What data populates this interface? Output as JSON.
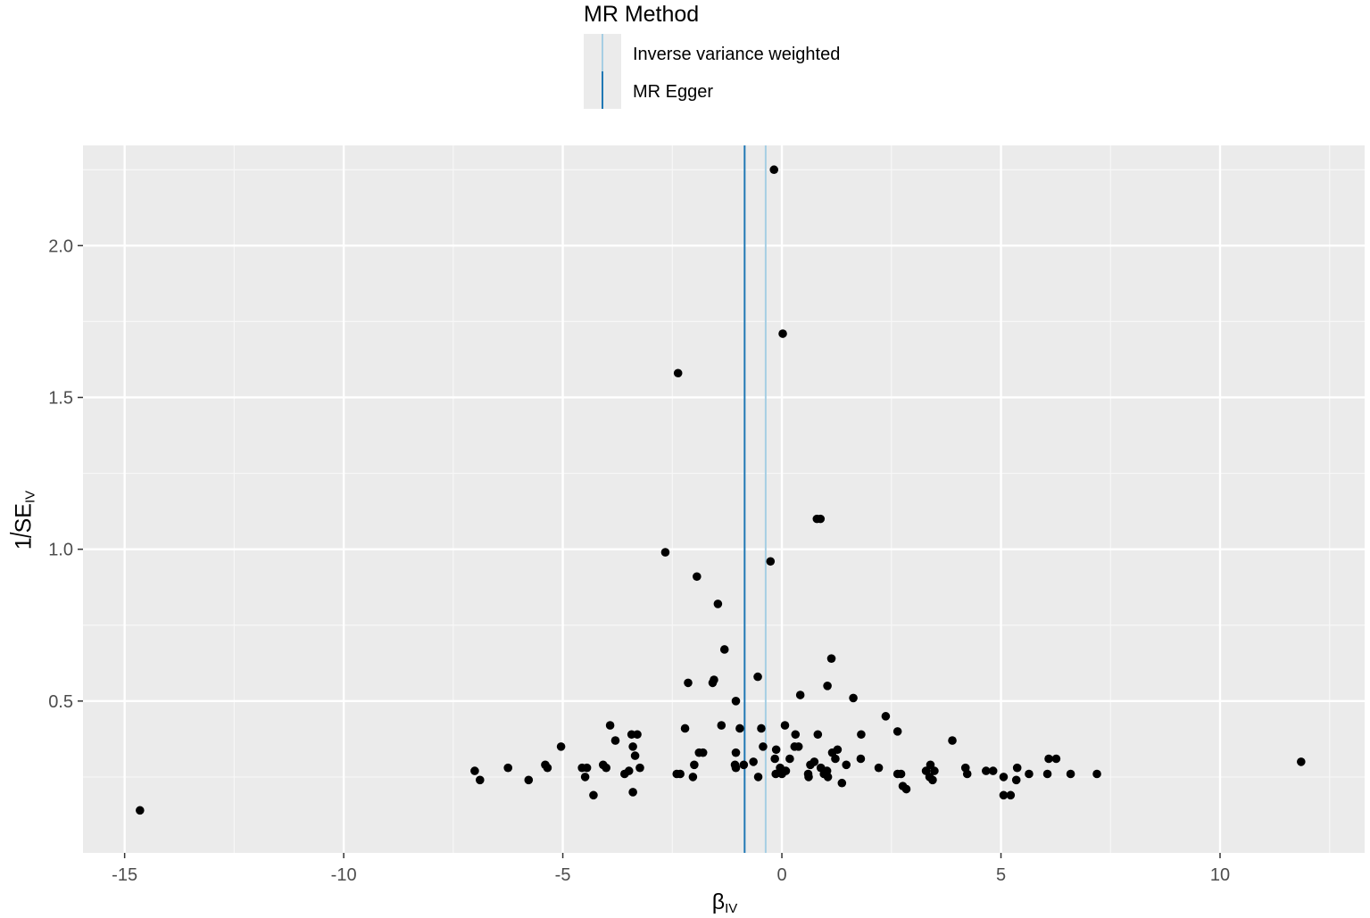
{
  "chart_data": {
    "type": "scatter",
    "xlabel": "β",
    "xlabel_sub": "IV",
    "ylabel_num": "1",
    "ylabel_den": "SE",
    "ylabel_sub": "IV",
    "xlim": [
      -15.95,
      13.3
    ],
    "ylim": [
      0.0,
      2.33
    ],
    "x_ticks": [
      -15,
      -10,
      -5,
      0,
      5,
      10
    ],
    "x_tick_labels": [
      "-15",
      "-10",
      "-5",
      "0",
      "5",
      "10"
    ],
    "y_ticks": [
      0.5,
      1.0,
      1.5,
      2.0
    ],
    "y_tick_labels": [
      "0.5",
      "1.0",
      "1.5",
      "2.0"
    ],
    "grid": true,
    "legend": {
      "title": "MR Method",
      "position": "top",
      "entries": [
        {
          "label": "Inverse variance weighted",
          "color": "#a6cee3"
        },
        {
          "label": "MR Egger",
          "color": "#1f78b4"
        }
      ]
    },
    "reference_lines": [
      {
        "method": "Inverse variance weighted",
        "x": -0.37,
        "color": "#a6cee3"
      },
      {
        "method": "MR Egger",
        "x": -0.85,
        "color": "#1f78b4"
      }
    ],
    "points": [
      [
        -0.18,
        2.25
      ],
      [
        0.02,
        1.71
      ],
      [
        -2.37,
        1.58
      ],
      [
        0.8,
        1.1
      ],
      [
        0.88,
        1.1
      ],
      [
        -2.66,
        0.99
      ],
      [
        -0.26,
        0.96
      ],
      [
        -1.94,
        0.91
      ],
      [
        -1.46,
        0.82
      ],
      [
        -1.31,
        0.67
      ],
      [
        1.13,
        0.64
      ],
      [
        -0.55,
        0.58
      ],
      [
        -2.14,
        0.56
      ],
      [
        -1.55,
        0.57
      ],
      [
        -1.58,
        0.56
      ],
      [
        1.04,
        0.55
      ],
      [
        0.42,
        0.52
      ],
      [
        1.63,
        0.51
      ],
      [
        -1.05,
        0.5
      ],
      [
        2.37,
        0.45
      ],
      [
        -3.92,
        0.42
      ],
      [
        -2.21,
        0.41
      ],
      [
        -1.38,
        0.42
      ],
      [
        -0.96,
        0.41
      ],
      [
        -0.47,
        0.41
      ],
      [
        0.07,
        0.42
      ],
      [
        2.64,
        0.4
      ],
      [
        -3.3,
        0.39
      ],
      [
        -3.43,
        0.39
      ],
      [
        0.31,
        0.39
      ],
      [
        0.82,
        0.39
      ],
      [
        1.81,
        0.39
      ],
      [
        -3.8,
        0.37
      ],
      [
        -5.04,
        0.35
      ],
      [
        -3.4,
        0.35
      ],
      [
        -0.43,
        0.35
      ],
      [
        0.29,
        0.35
      ],
      [
        1.27,
        0.34
      ],
      [
        3.89,
        0.37
      ],
      [
        -1.8,
        0.33
      ],
      [
        -1.89,
        0.33
      ],
      [
        -1.05,
        0.33
      ],
      [
        -3.35,
        0.32
      ],
      [
        -0.13,
        0.34
      ],
      [
        0.38,
        0.35
      ],
      [
        1.15,
        0.33
      ],
      [
        -0.65,
        0.3
      ],
      [
        -0.16,
        0.31
      ],
      [
        0.18,
        0.31
      ],
      [
        0.74,
        0.3
      ],
      [
        1.22,
        0.31
      ],
      [
        1.8,
        0.31
      ],
      [
        6.09,
        0.31
      ],
      [
        6.26,
        0.31
      ],
      [
        11.85,
        0.3
      ],
      [
        -5.4,
        0.29
      ],
      [
        -4.08,
        0.29
      ],
      [
        -3.24,
        0.28
      ],
      [
        -2.0,
        0.29
      ],
      [
        -1.07,
        0.29
      ],
      [
        -0.87,
        0.29
      ],
      [
        -0.04,
        0.28
      ],
      [
        0.65,
        0.29
      ],
      [
        1.47,
        0.29
      ],
      [
        3.39,
        0.29
      ],
      [
        4.19,
        0.28
      ],
      [
        -6.25,
        0.28
      ],
      [
        -5.35,
        0.28
      ],
      [
        -4.56,
        0.28
      ],
      [
        -4.45,
        0.28
      ],
      [
        -4.01,
        0.28
      ],
      [
        -3.49,
        0.27
      ],
      [
        -1.05,
        0.28
      ],
      [
        0.09,
        0.27
      ],
      [
        0.89,
        0.28
      ],
      [
        1.03,
        0.27
      ],
      [
        2.21,
        0.28
      ],
      [
        3.29,
        0.27
      ],
      [
        3.48,
        0.27
      ],
      [
        4.66,
        0.27
      ],
      [
        4.82,
        0.27
      ],
      [
        5.37,
        0.28
      ],
      [
        -7.01,
        0.27
      ],
      [
        -3.59,
        0.26
      ],
      [
        -2.4,
        0.26
      ],
      [
        -2.32,
        0.26
      ],
      [
        -0.14,
        0.26
      ],
      [
        0.0,
        0.26
      ],
      [
        0.6,
        0.26
      ],
      [
        0.96,
        0.26
      ],
      [
        2.64,
        0.26
      ],
      [
        2.72,
        0.26
      ],
      [
        3.37,
        0.25
      ],
      [
        4.23,
        0.26
      ],
      [
        5.06,
        0.25
      ],
      [
        5.64,
        0.26
      ],
      [
        6.06,
        0.26
      ],
      [
        6.59,
        0.26
      ],
      [
        7.19,
        0.26
      ],
      [
        -6.89,
        0.24
      ],
      [
        -5.78,
        0.24
      ],
      [
        -4.49,
        0.25
      ],
      [
        -2.03,
        0.25
      ],
      [
        -0.54,
        0.25
      ],
      [
        0.61,
        0.25
      ],
      [
        1.05,
        0.25
      ],
      [
        3.44,
        0.24
      ],
      [
        5.35,
        0.24
      ],
      [
        1.37,
        0.23
      ],
      [
        2.76,
        0.22
      ],
      [
        2.84,
        0.21
      ],
      [
        -3.4,
        0.2
      ],
      [
        -4.3,
        0.19
      ],
      [
        5.06,
        0.19
      ],
      [
        5.22,
        0.19
      ],
      [
        -14.65,
        0.14
      ]
    ]
  }
}
